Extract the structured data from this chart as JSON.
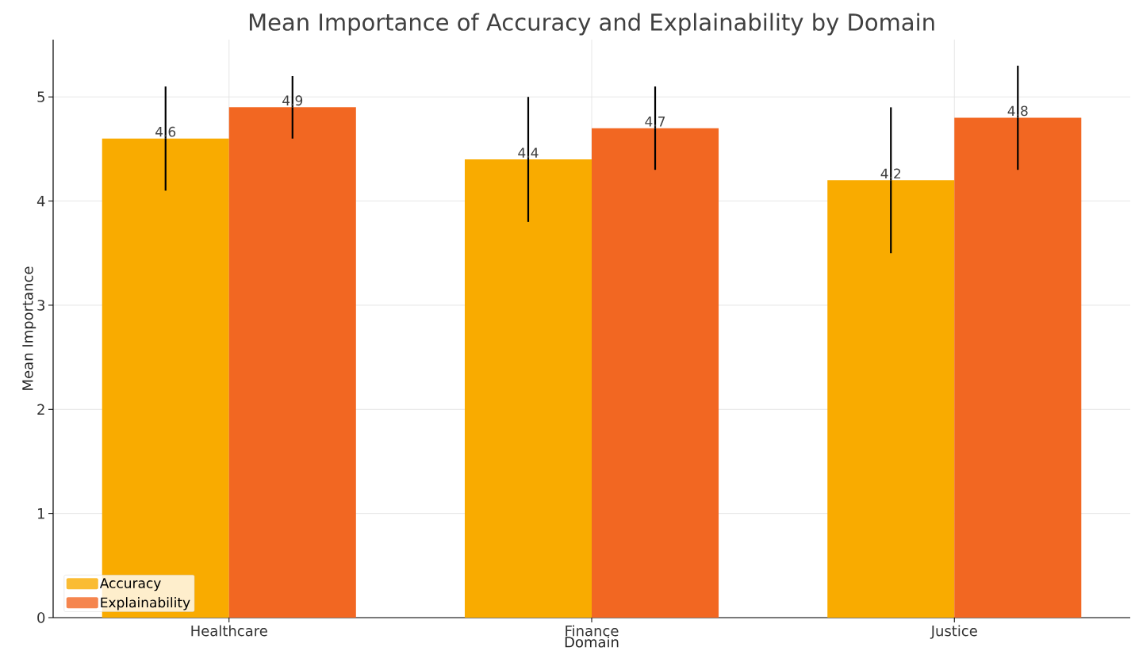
{
  "chart_data": {
    "type": "bar",
    "title": "Mean Importance of Accuracy and Explainability by Domain",
    "xlabel": "Domain",
    "ylabel": "Mean Importance",
    "categories": [
      "Healthcare",
      "Finance",
      "Justice"
    ],
    "series": [
      {
        "name": "Accuracy",
        "color": "#f9ab00",
        "values": [
          4.6,
          4.4,
          4.2
        ],
        "errors": [
          0.5,
          0.6,
          0.7
        ]
      },
      {
        "name": "Explainability",
        "color": "#f26722",
        "values": [
          4.9,
          4.7,
          4.8
        ],
        "errors": [
          0.3,
          0.4,
          0.5
        ]
      }
    ],
    "ylim": [
      0,
      5.55
    ],
    "yticks": [
      0,
      1,
      2,
      3,
      4,
      5
    ],
    "grid": true,
    "legend": "bottom left",
    "data_labels": true
  }
}
